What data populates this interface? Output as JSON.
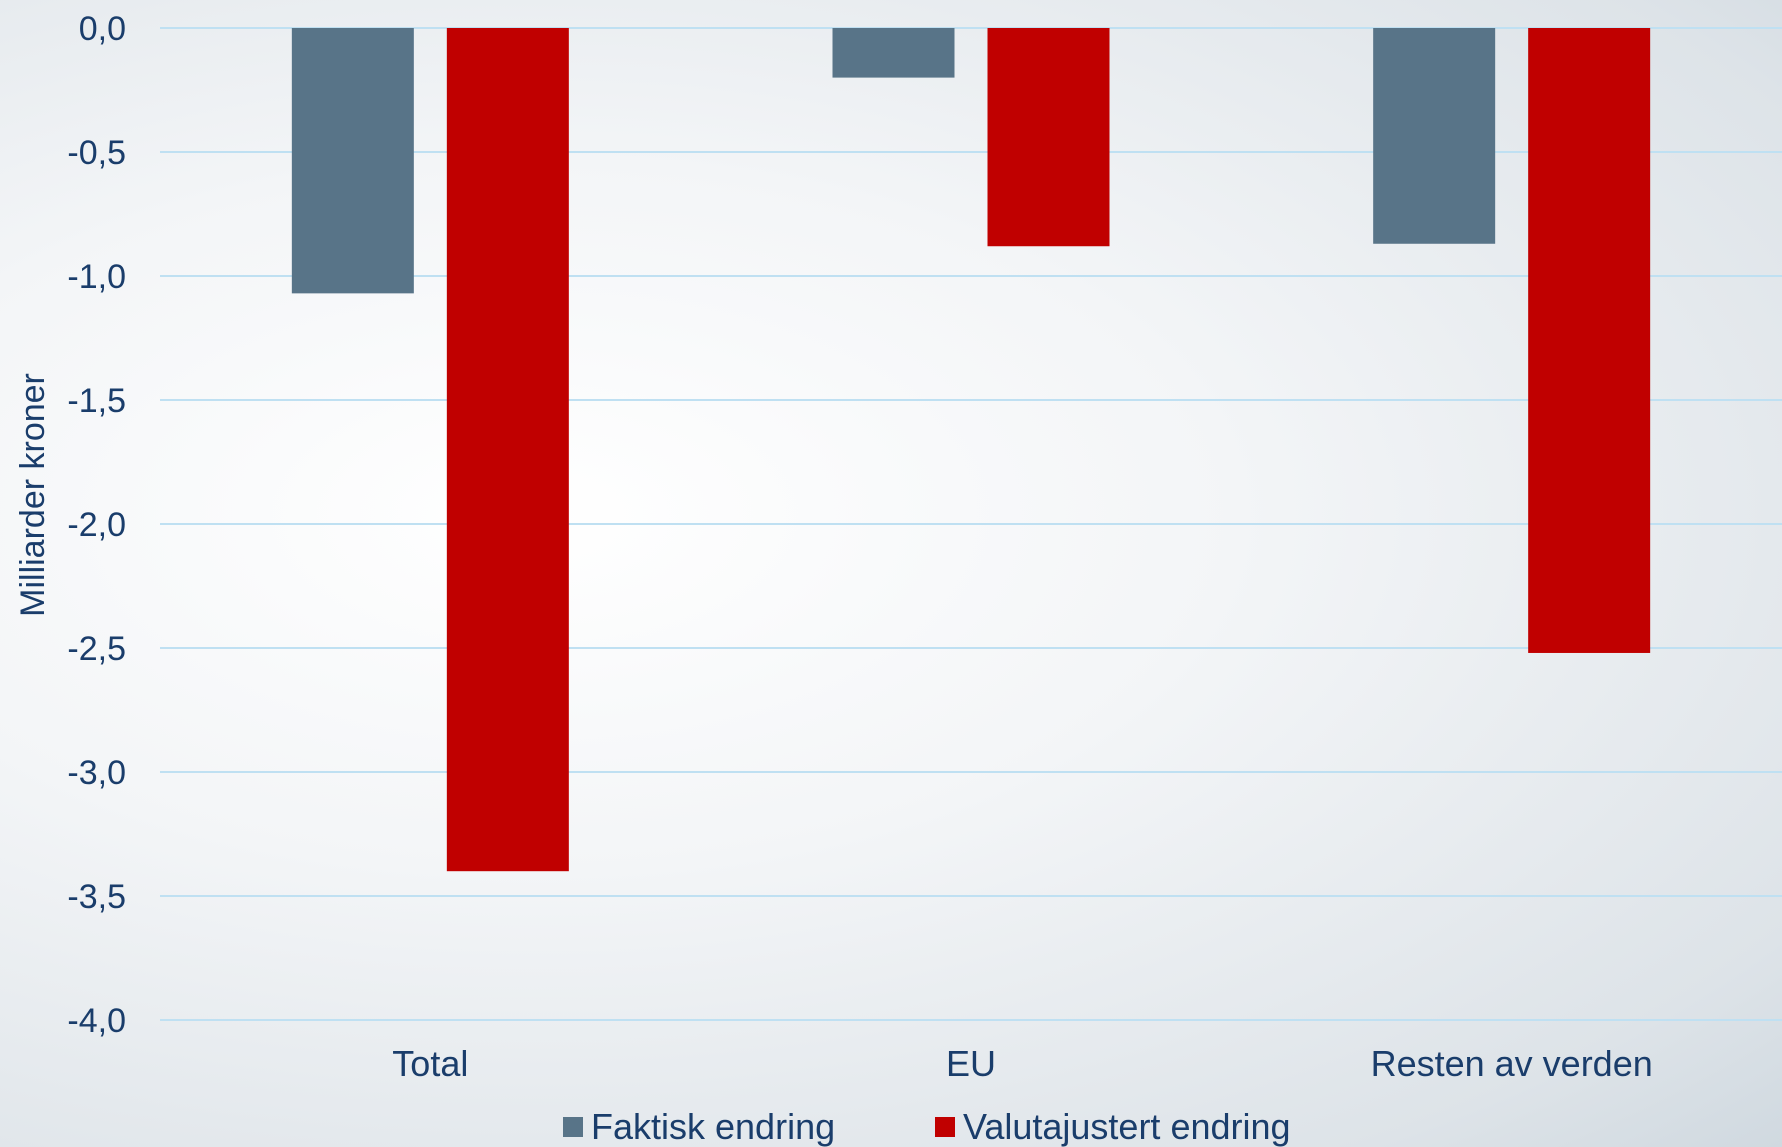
{
  "chart_data": {
    "type": "bar",
    "title": "",
    "ylabel": "Milliarder kroner",
    "xlabel": "",
    "categories": [
      "Total",
      "EU",
      "Resten av verden"
    ],
    "series": [
      {
        "name": "Faktisk endring",
        "color": "#587488",
        "values": [
          -1.07,
          -0.2,
          -0.87
        ]
      },
      {
        "name": "Valutajustert endring",
        "color": "#c00000",
        "values": [
          -3.4,
          -0.88,
          -2.52
        ]
      }
    ],
    "ylim": [
      -4.0,
      0.0
    ],
    "yticks": [
      0.0,
      -0.5,
      -1.0,
      -1.5,
      -2.0,
      -2.5,
      -3.0,
      -3.5,
      -4.0
    ],
    "ytick_labels": [
      "0,0",
      "-0,5",
      "-1,0",
      "-1,5",
      "-2,0",
      "-2,5",
      "-3,0",
      "-3,5",
      "-4,0"
    ],
    "grid": true,
    "grid_color": "#bfe0f2",
    "legend_position": "bottom",
    "text_color": "#1a3d6b"
  }
}
